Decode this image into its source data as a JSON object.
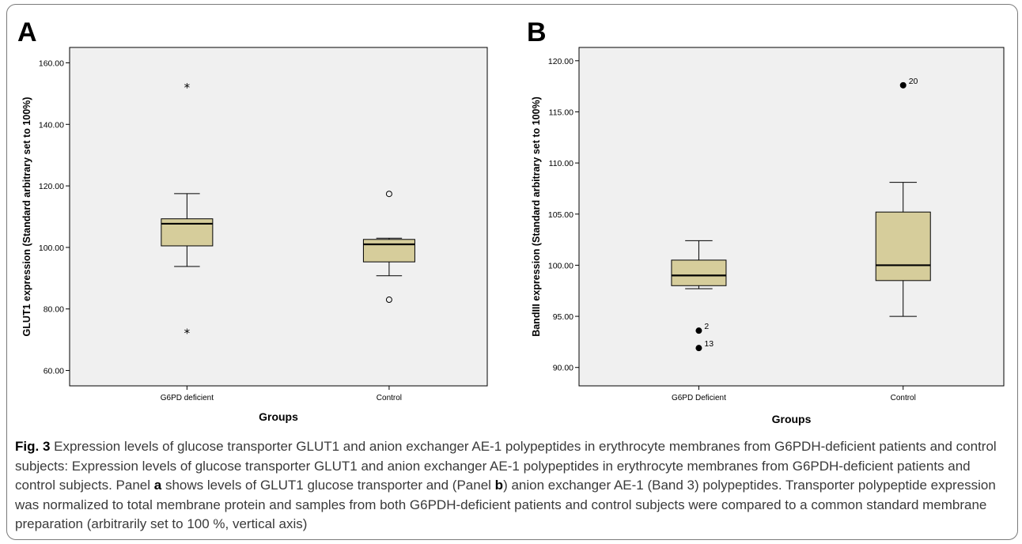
{
  "chart_data": [
    {
      "type": "box",
      "panel_label": "A",
      "ylabel": "GLUT1 expression (Standard arbitrary set to 100%)",
      "xlabel": "Groups",
      "ylim": [
        55,
        165
      ],
      "yticks": [
        "60.00",
        "80.00",
        "100.00",
        "120.00",
        "140.00",
        "160.00"
      ],
      "categories": [
        "G6PD deficient",
        "Control"
      ],
      "boxes": [
        {
          "category": "G6PD deficient",
          "whisker_low": 93.8,
          "q1": 100.5,
          "median": 107.7,
          "q3": 109.3,
          "whisker_high": 117.5,
          "outliers": [
            {
              "value": 152.6,
              "marker": "star"
            },
            {
              "value": 72.9,
              "marker": "star"
            }
          ]
        },
        {
          "category": "Control",
          "whisker_low": 90.8,
          "q1": 95.3,
          "median": 101.0,
          "q3": 102.6,
          "whisker_high": 103.0,
          "outliers": [
            {
              "value": 117.4,
              "marker": "circle"
            },
            {
              "value": 83.0,
              "marker": "circle"
            }
          ]
        }
      ],
      "colors": {
        "box_fill": "#d6cd9b",
        "plot_bg": "#f0f0f0"
      }
    },
    {
      "type": "box",
      "panel_label": "B",
      "ylabel": "BandIII expression (Standard arbitrary set to 100%)",
      "xlabel": "Groups",
      "ylim": [
        88.2,
        121.3
      ],
      "yticks": [
        "90.00",
        "95.00",
        "100.00",
        "105.00",
        "110.00",
        "115.00",
        "120.00"
      ],
      "categories": [
        "G6PD Deficient",
        "Control"
      ],
      "boxes": [
        {
          "category": "G6PD Deficient",
          "whisker_low": 97.7,
          "q1": 98.0,
          "median": 99.0,
          "q3": 100.5,
          "whisker_high": 102.4,
          "outliers": [
            {
              "value": 93.6,
              "marker": "dot",
              "label": "2"
            },
            {
              "value": 91.9,
              "marker": "dot",
              "label": "13"
            }
          ]
        },
        {
          "category": "Control",
          "whisker_low": 95.0,
          "q1": 98.5,
          "median": 100.0,
          "q3": 105.2,
          "whisker_high": 108.1,
          "outliers": [
            {
              "value": 117.6,
              "marker": "dot",
              "label": "20"
            }
          ]
        }
      ],
      "colors": {
        "box_fill": "#d6cd9b",
        "plot_bg": "#f0f0f0"
      }
    }
  ],
  "caption": {
    "fig_label": "Fig. 3",
    "part1": " Expression levels of glucose transporter GLUT1 and anion exchanger AE-1 polypeptides in erythrocyte membranes from G6PDH-deficient patients and control subjects: Expression levels of glucose transporter GLUT1 and anion exchanger AE-1 polypeptides in erythrocyte membranes from G6PDH-deficient patients and control subjects. Panel ",
    "panel_a": "a",
    "part2": " shows levels of GLUT1 glucose transporter and (Panel ",
    "panel_b": "b",
    "part3": ") anion exchanger AE-1 (Band 3) polypeptides. Transporter polypeptide expression was normalized to total membrane protein and samples from both G6PDH-deficient patients and control subjects were compared to a common standard membrane preparation (arbitrarily set to 100 %, vertical axis)"
  }
}
